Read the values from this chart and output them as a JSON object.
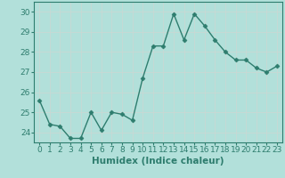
{
  "x": [
    0,
    1,
    2,
    3,
    4,
    5,
    6,
    7,
    8,
    9,
    10,
    11,
    12,
    13,
    14,
    15,
    16,
    17,
    18,
    19,
    20,
    21,
    22,
    23
  ],
  "y": [
    25.6,
    24.4,
    24.3,
    23.7,
    23.7,
    25.0,
    24.1,
    25.0,
    24.9,
    24.6,
    26.7,
    28.3,
    28.3,
    29.9,
    28.6,
    29.9,
    29.3,
    28.6,
    28.0,
    27.6,
    27.6,
    27.2,
    27.0,
    27.3
  ],
  "line_color": "#2e7d6e",
  "marker": "D",
  "marker_size": 2.5,
  "bg_color": "#b2e0da",
  "grid_color": "#c8d8d4",
  "xlabel": "Humidex (Indice chaleur)",
  "xlim": [
    -0.5,
    23.5
  ],
  "ylim": [
    23.5,
    30.5
  ],
  "yticks": [
    24,
    25,
    26,
    27,
    28,
    29,
    30
  ],
  "xticks": [
    0,
    1,
    2,
    3,
    4,
    5,
    6,
    7,
    8,
    9,
    10,
    11,
    12,
    13,
    14,
    15,
    16,
    17,
    18,
    19,
    20,
    21,
    22,
    23
  ],
  "xlabel_fontsize": 7.5,
  "tick_fontsize": 6.5,
  "line_width": 1.0
}
